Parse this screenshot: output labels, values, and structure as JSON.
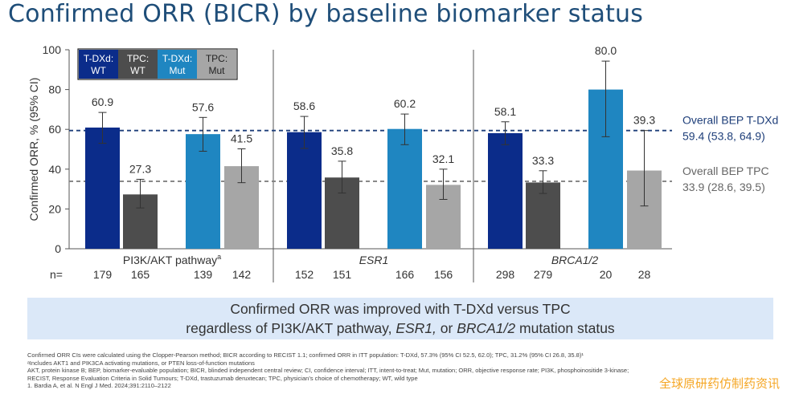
{
  "title": "Confirmed ORR (BICR) by baseline biomarker status",
  "chart_data": {
    "type": "bar",
    "ylabel": "Confirmed ORR, % (95% CI)",
    "ylim": [
      0,
      100
    ],
    "yticks": [
      0,
      20,
      40,
      60,
      80,
      100
    ],
    "legend": [
      {
        "label_line1": "T-DXd:",
        "label_line2": "WT",
        "color": "#0b2c8a"
      },
      {
        "label_line1": "TPC:",
        "label_line2": "WT",
        "color": "#4d4d4d"
      },
      {
        "label_line1": "T-DXd:",
        "label_line2": "Mut",
        "color": "#1f86c1"
      },
      {
        "label_line1": "TPC:",
        "label_line2": "Mut",
        "color": "#a6a6a6"
      }
    ],
    "groups": [
      {
        "label": "PI3K/AKT pathway",
        "label_sup": "a",
        "italic": false,
        "bars": [
          {
            "series": "T-DXd: WT",
            "value": 60.9,
            "ci": [
              53.0,
              68.5
            ],
            "n": "179",
            "color": "#0b2c8a"
          },
          {
            "series": "TPC: WT",
            "value": 27.3,
            "ci": [
              20.5,
              34.9
            ],
            "n": "165",
            "color": "#4d4d4d"
          },
          {
            "series": "T-DXd: Mut",
            "value": 57.6,
            "ci": [
              49.0,
              66.0
            ],
            "n": "139",
            "color": "#1f86c1"
          },
          {
            "series": "TPC: Mut",
            "value": 41.5,
            "ci": [
              33.2,
              50.2
            ],
            "n": "142",
            "color": "#a6a6a6"
          }
        ]
      },
      {
        "label": "ESR1",
        "label_sup": "",
        "italic": true,
        "bars": [
          {
            "series": "T-DXd: WT",
            "value": 58.6,
            "ci": [
              50.4,
              66.5
            ],
            "n": "152",
            "color": "#0b2c8a"
          },
          {
            "series": "TPC: WT",
            "value": 35.8,
            "ci": [
              28.0,
              44.0
            ],
            "n": "151",
            "color": "#4d4d4d"
          },
          {
            "series": "T-DXd: Mut",
            "value": 60.2,
            "ci": [
              52.3,
              67.7
            ],
            "n": "166",
            "color": "#1f86c1"
          },
          {
            "series": "TPC: Mut",
            "value": 32.1,
            "ci": [
              24.8,
              40.0
            ],
            "n": "156",
            "color": "#a6a6a6"
          }
        ]
      },
      {
        "label": "BRCA1/2",
        "label_sup": "",
        "italic": true,
        "bars": [
          {
            "series": "T-DXd: WT",
            "value": 58.1,
            "ci": [
              52.3,
              63.8
            ],
            "n": "298",
            "color": "#0b2c8a"
          },
          {
            "series": "TPC: WT",
            "value": 33.3,
            "ci": [
              27.8,
              39.2
            ],
            "n": "279",
            "color": "#4d4d4d"
          },
          {
            "series": "T-DXd: Mut",
            "value": 80.0,
            "ci": [
              56.3,
              94.3
            ],
            "n": "20",
            "color": "#1f86c1"
          },
          {
            "series": "TPC: Mut",
            "value": 39.3,
            "ci": [
              21.5,
              59.4
            ],
            "n": "28",
            "color": "#a6a6a6"
          }
        ]
      }
    ],
    "n_prefix": "n=",
    "reference_lines": [
      {
        "value": 59.4,
        "label_line1": "Overall BEP T-DXd",
        "label_line2": "59.4 (53.8, 64.9)",
        "color": "#1f3f7a",
        "text_color": "#1f3f7a"
      },
      {
        "value": 33.9,
        "label_line1": "Overall BEP TPC",
        "label_line2": "33.9 (28.6, 39.5)",
        "color": "#808080",
        "text_color": "#666666"
      }
    ]
  },
  "callout": {
    "line1": "Confirmed ORR was improved with T-DXd versus TPC",
    "line2_pre": "regardless of PI3K/AKT pathway, ",
    "line2_esr": "ESR1,",
    "line2_mid": " or ",
    "line2_brca": "BRCA1/2",
    "line2_post": " mutation status"
  },
  "footnotes": {
    "line1": "Confirmed ORR CIs were calculated using the Clopper-Pearson method; BICR according to RECIST 1.1; confirmed ORR in ITT population: T-DXd, 57.3% (95% CI 52.5, 62.0); TPC, 31.2% (95% CI 26.8, 35.8)¹",
    "line2": "ᵃIncludes AKT1 and PIK3CA activating mutations, or PTEN loss-of-function mutations",
    "line3": "AKT, protein kinase B; BEP, biomarker-evaluable population; BICR, blinded independent central review; CI, confidence interval; ITT, intent-to-treat; Mut, mutation; ORR, objective response rate; PI3K, phosphoinositide 3-kinase;",
    "line4": "RECIST, Response Evaluation Criteria in Solid Tumours; T-DXd, trastuzumab deruxtecan; TPC, physician’s choice of chemotherapy; WT, wild type",
    "line5": "1. Bardia A, et al. N Engl J Med. 2024;391:2110–2122"
  },
  "watermark": "全球原研药仿制药资讯"
}
